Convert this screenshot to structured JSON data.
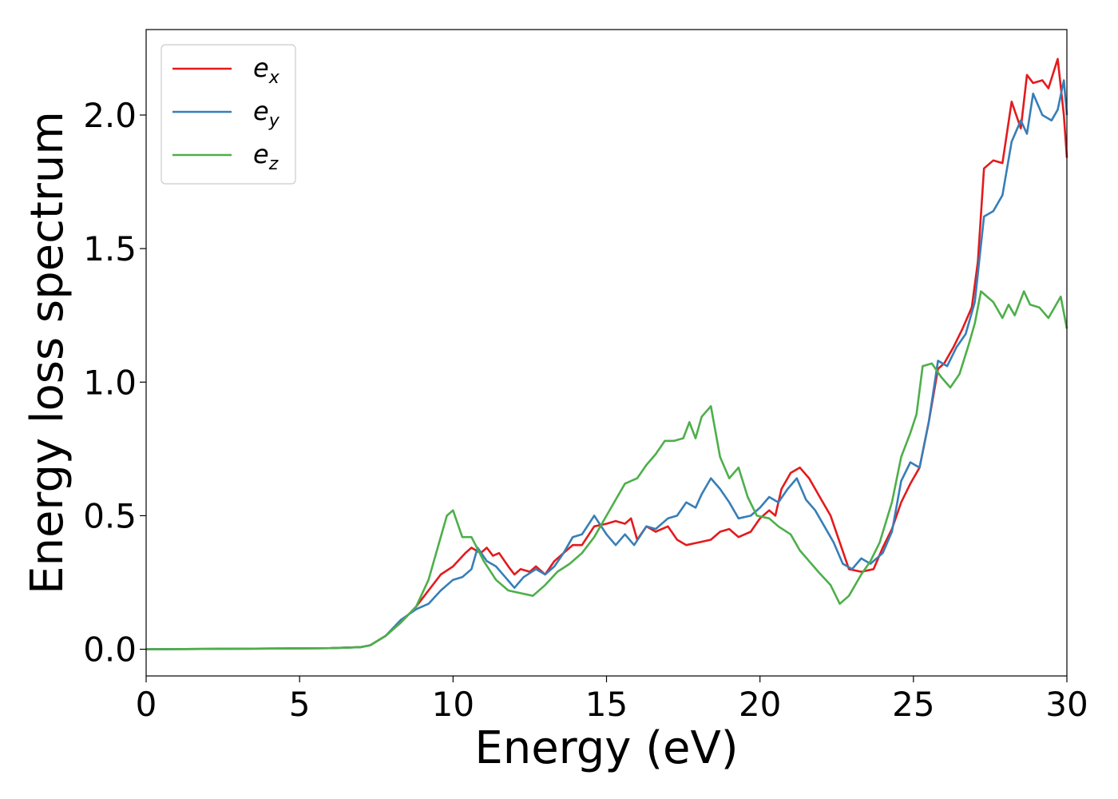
{
  "chart_data": {
    "type": "line",
    "xlabel": "Energy (eV)",
    "ylabel": "Energy loss spectrum",
    "xlim": [
      0,
      30
    ],
    "ylim": [
      -0.1,
      2.32
    ],
    "xticks": [
      0,
      5,
      10,
      15,
      20,
      25,
      30
    ],
    "xtick_labels": [
      "0",
      "5",
      "10",
      "15",
      "20",
      "25",
      "30"
    ],
    "yticks": [
      0.0,
      0.5,
      1.0,
      1.5,
      2.0
    ],
    "ytick_labels": [
      "0.0",
      "0.5",
      "1.0",
      "1.5",
      "2.0"
    ],
    "grid": false,
    "legend_position": "top-left",
    "series": [
      {
        "name": "e_x",
        "legend_base": "e",
        "legend_sub": "x",
        "color": "#e41a1c",
        "points": [
          [
            0,
            0
          ],
          [
            3,
            0.002
          ],
          [
            6,
            0.004
          ],
          [
            7,
            0.008
          ],
          [
            7.3,
            0.015
          ],
          [
            7.8,
            0.05
          ],
          [
            8.3,
            0.1
          ],
          [
            8.8,
            0.16
          ],
          [
            9.2,
            0.22
          ],
          [
            9.6,
            0.28
          ],
          [
            10,
            0.31
          ],
          [
            10.4,
            0.36
          ],
          [
            10.6,
            0.38
          ],
          [
            10.9,
            0.36
          ],
          [
            11.1,
            0.38
          ],
          [
            11.3,
            0.35
          ],
          [
            11.5,
            0.36
          ],
          [
            11.8,
            0.31
          ],
          [
            12,
            0.28
          ],
          [
            12.2,
            0.3
          ],
          [
            12.5,
            0.29
          ],
          [
            12.7,
            0.31
          ],
          [
            13,
            0.28
          ],
          [
            13.3,
            0.33
          ],
          [
            13.6,
            0.36
          ],
          [
            13.9,
            0.39
          ],
          [
            14.2,
            0.39
          ],
          [
            14.6,
            0.46
          ],
          [
            15,
            0.47
          ],
          [
            15.3,
            0.48
          ],
          [
            15.6,
            0.47
          ],
          [
            15.8,
            0.49
          ],
          [
            16,
            0.41
          ],
          [
            16.3,
            0.46
          ],
          [
            16.6,
            0.44
          ],
          [
            17,
            0.46
          ],
          [
            17.3,
            0.41
          ],
          [
            17.6,
            0.39
          ],
          [
            18,
            0.4
          ],
          [
            18.4,
            0.41
          ],
          [
            18.7,
            0.44
          ],
          [
            19,
            0.45
          ],
          [
            19.3,
            0.42
          ],
          [
            19.7,
            0.44
          ],
          [
            20,
            0.49
          ],
          [
            20.3,
            0.52
          ],
          [
            20.5,
            0.5
          ],
          [
            20.7,
            0.6
          ],
          [
            21,
            0.66
          ],
          [
            21.3,
            0.68
          ],
          [
            21.6,
            0.64
          ],
          [
            22,
            0.56
          ],
          [
            22.3,
            0.5
          ],
          [
            22.6,
            0.4
          ],
          [
            22.9,
            0.3
          ],
          [
            23.3,
            0.29
          ],
          [
            23.7,
            0.3
          ],
          [
            24,
            0.38
          ],
          [
            24.3,
            0.45
          ],
          [
            24.6,
            0.55
          ],
          [
            24.9,
            0.62
          ],
          [
            25.2,
            0.68
          ],
          [
            25.5,
            0.85
          ],
          [
            25.8,
            1.05
          ],
          [
            26,
            1.07
          ],
          [
            26.3,
            1.13
          ],
          [
            26.6,
            1.2
          ],
          [
            26.9,
            1.28
          ],
          [
            27.1,
            1.45
          ],
          [
            27.3,
            1.8
          ],
          [
            27.6,
            1.83
          ],
          [
            27.9,
            1.82
          ],
          [
            28.2,
            2.05
          ],
          [
            28.5,
            1.95
          ],
          [
            28.7,
            2.15
          ],
          [
            28.9,
            2.12
          ],
          [
            29.2,
            2.13
          ],
          [
            29.4,
            2.1
          ],
          [
            29.7,
            2.21
          ],
          [
            29.9,
            2.0
          ],
          [
            30,
            1.84
          ]
        ]
      },
      {
        "name": "e_y",
        "legend_base": "e",
        "legend_sub": "y",
        "color": "#377eb8",
        "points": [
          [
            0,
            0
          ],
          [
            3,
            0.002
          ],
          [
            6,
            0.004
          ],
          [
            7,
            0.008
          ],
          [
            7.3,
            0.015
          ],
          [
            7.8,
            0.05
          ],
          [
            8.3,
            0.11
          ],
          [
            8.8,
            0.15
          ],
          [
            9.2,
            0.17
          ],
          [
            9.6,
            0.22
          ],
          [
            10,
            0.26
          ],
          [
            10.3,
            0.27
          ],
          [
            10.6,
            0.3
          ],
          [
            10.8,
            0.38
          ],
          [
            11.1,
            0.33
          ],
          [
            11.4,
            0.31
          ],
          [
            11.7,
            0.27
          ],
          [
            12,
            0.23
          ],
          [
            12.3,
            0.27
          ],
          [
            12.7,
            0.3
          ],
          [
            13,
            0.28
          ],
          [
            13.3,
            0.31
          ],
          [
            13.6,
            0.36
          ],
          [
            13.9,
            0.42
          ],
          [
            14.2,
            0.43
          ],
          [
            14.6,
            0.5
          ],
          [
            15,
            0.43
          ],
          [
            15.3,
            0.39
          ],
          [
            15.6,
            0.43
          ],
          [
            15.9,
            0.39
          ],
          [
            16.3,
            0.46
          ],
          [
            16.6,
            0.45
          ],
          [
            17,
            0.49
          ],
          [
            17.3,
            0.5
          ],
          [
            17.6,
            0.55
          ],
          [
            17.9,
            0.53
          ],
          [
            18.1,
            0.58
          ],
          [
            18.4,
            0.64
          ],
          [
            18.7,
            0.6
          ],
          [
            19,
            0.55
          ],
          [
            19.3,
            0.49
          ],
          [
            19.7,
            0.5
          ],
          [
            20,
            0.53
          ],
          [
            20.3,
            0.57
          ],
          [
            20.6,
            0.55
          ],
          [
            20.9,
            0.6
          ],
          [
            21.2,
            0.64
          ],
          [
            21.5,
            0.56
          ],
          [
            21.8,
            0.52
          ],
          [
            22.1,
            0.46
          ],
          [
            22.4,
            0.4
          ],
          [
            22.7,
            0.32
          ],
          [
            23,
            0.3
          ],
          [
            23.3,
            0.34
          ],
          [
            23.6,
            0.32
          ],
          [
            24,
            0.36
          ],
          [
            24.3,
            0.44
          ],
          [
            24.6,
            0.63
          ],
          [
            24.9,
            0.7
          ],
          [
            25.2,
            0.68
          ],
          [
            25.5,
            0.85
          ],
          [
            25.8,
            1.08
          ],
          [
            26.1,
            1.06
          ],
          [
            26.4,
            1.13
          ],
          [
            26.7,
            1.18
          ],
          [
            27,
            1.3
          ],
          [
            27.3,
            1.62
          ],
          [
            27.6,
            1.64
          ],
          [
            27.9,
            1.7
          ],
          [
            28.2,
            1.9
          ],
          [
            28.5,
            1.98
          ],
          [
            28.7,
            1.93
          ],
          [
            28.9,
            2.08
          ],
          [
            29.2,
            2.0
          ],
          [
            29.5,
            1.98
          ],
          [
            29.7,
            2.02
          ],
          [
            29.9,
            2.13
          ],
          [
            30,
            2.0
          ]
        ]
      },
      {
        "name": "e_z",
        "legend_base": "e",
        "legend_sub": "z",
        "color": "#4daf4a",
        "points": [
          [
            0,
            0
          ],
          [
            3,
            0.002
          ],
          [
            6,
            0.004
          ],
          [
            7,
            0.008
          ],
          [
            7.3,
            0.015
          ],
          [
            7.8,
            0.05
          ],
          [
            8.3,
            0.1
          ],
          [
            8.8,
            0.16
          ],
          [
            9.2,
            0.26
          ],
          [
            9.5,
            0.38
          ],
          [
            9.8,
            0.5
          ],
          [
            10,
            0.52
          ],
          [
            10.3,
            0.42
          ],
          [
            10.6,
            0.42
          ],
          [
            11,
            0.33
          ],
          [
            11.4,
            0.26
          ],
          [
            11.8,
            0.22
          ],
          [
            12.2,
            0.21
          ],
          [
            12.6,
            0.2
          ],
          [
            13,
            0.24
          ],
          [
            13.4,
            0.29
          ],
          [
            13.8,
            0.32
          ],
          [
            14.2,
            0.36
          ],
          [
            14.6,
            0.42
          ],
          [
            15,
            0.5
          ],
          [
            15.3,
            0.56
          ],
          [
            15.6,
            0.62
          ],
          [
            16,
            0.64
          ],
          [
            16.3,
            0.69
          ],
          [
            16.6,
            0.73
          ],
          [
            16.9,
            0.78
          ],
          [
            17.2,
            0.78
          ],
          [
            17.5,
            0.79
          ],
          [
            17.7,
            0.85
          ],
          [
            17.9,
            0.79
          ],
          [
            18.1,
            0.87
          ],
          [
            18.4,
            0.91
          ],
          [
            18.7,
            0.72
          ],
          [
            19,
            0.64
          ],
          [
            19.3,
            0.68
          ],
          [
            19.6,
            0.57
          ],
          [
            19.9,
            0.5
          ],
          [
            20.3,
            0.49
          ],
          [
            20.6,
            0.46
          ],
          [
            21,
            0.43
          ],
          [
            21.3,
            0.37
          ],
          [
            21.6,
            0.33
          ],
          [
            21.9,
            0.29
          ],
          [
            22.3,
            0.24
          ],
          [
            22.6,
            0.17
          ],
          [
            22.9,
            0.2
          ],
          [
            23.3,
            0.28
          ],
          [
            23.6,
            0.33
          ],
          [
            23.9,
            0.4
          ],
          [
            24.3,
            0.55
          ],
          [
            24.6,
            0.72
          ],
          [
            24.9,
            0.81
          ],
          [
            25.1,
            0.88
          ],
          [
            25.3,
            1.06
          ],
          [
            25.6,
            1.07
          ],
          [
            25.9,
            1.02
          ],
          [
            26.2,
            0.98
          ],
          [
            26.5,
            1.03
          ],
          [
            26.8,
            1.14
          ],
          [
            27,
            1.22
          ],
          [
            27.2,
            1.34
          ],
          [
            27.6,
            1.3
          ],
          [
            27.9,
            1.24
          ],
          [
            28.1,
            1.29
          ],
          [
            28.3,
            1.25
          ],
          [
            28.6,
            1.34
          ],
          [
            28.8,
            1.29
          ],
          [
            29.1,
            1.28
          ],
          [
            29.4,
            1.24
          ],
          [
            29.8,
            1.32
          ],
          [
            30,
            1.2
          ]
        ]
      }
    ]
  }
}
